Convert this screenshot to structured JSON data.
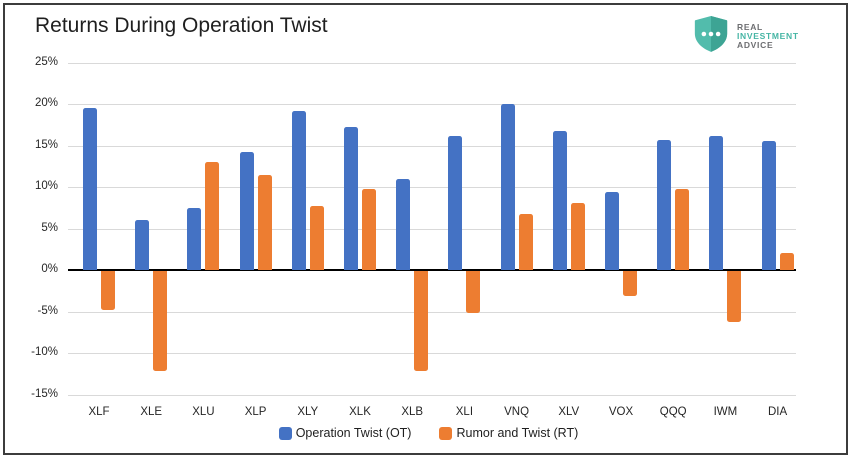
{
  "title": "Returns During Operation Twist",
  "logo": {
    "line1": "REAL",
    "line2": "INVESTMENT",
    "line3": "ADVICE"
  },
  "colors": {
    "series_ot": "#4472C4",
    "series_rt": "#ED7D31",
    "grid": "#D9D9D9",
    "zero_line": "#000000",
    "frame_border": "#3C3C3C",
    "logo_teal_light": "#52BCAC",
    "logo_teal_dark": "#3DA494",
    "logo_gray": "#6D6E71"
  },
  "chart_data": {
    "type": "bar",
    "title": "Returns During Operation Twist",
    "categories": [
      "XLF",
      "XLE",
      "XLU",
      "XLP",
      "XLY",
      "XLK",
      "XLB",
      "XLI",
      "VNQ",
      "XLV",
      "VOX",
      "QQQ",
      "IWM",
      "DIA"
    ],
    "series": [
      {
        "name": "Operation Twist (OT)",
        "color": "#4472C4",
        "values": [
          19.5,
          6.0,
          7.5,
          14.2,
          19.2,
          17.2,
          11.0,
          16.2,
          20.0,
          16.7,
          9.4,
          15.7,
          16.2,
          15.6
        ]
      },
      {
        "name": "Rumor and Twist (RT)",
        "color": "#ED7D31",
        "values": [
          -4.7,
          -12.0,
          13.0,
          11.5,
          7.7,
          9.8,
          -12.0,
          -5.0,
          6.7,
          8.1,
          -3.0,
          9.8,
          -6.1,
          2.1
        ]
      }
    ],
    "xlabel": "",
    "ylabel": "",
    "ylim": [
      -15,
      25
    ],
    "y_ticks": [
      25,
      20,
      15,
      10,
      5,
      0,
      -5,
      -10,
      -15
    ],
    "y_tick_suffix": "%",
    "grid": true,
    "zero_line": true,
    "legend_position": "bottom"
  }
}
